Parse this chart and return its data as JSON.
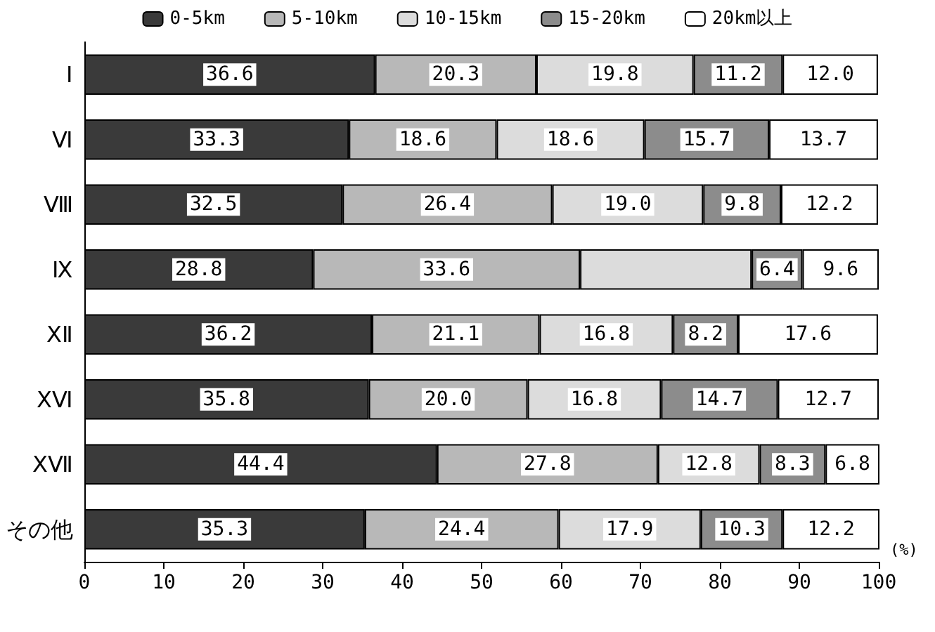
{
  "chart_data": {
    "type": "bar",
    "orientation": "horizontal",
    "stacked": true,
    "xlabel": "(%)",
    "categories": [
      "Ⅰ",
      "Ⅵ",
      "Ⅷ",
      "Ⅸ",
      "ⅩⅡ",
      "ⅩⅥ",
      "ⅩⅦ",
      "その他"
    ],
    "series": [
      {
        "name": "0-5km",
        "color": "#3a3a3a",
        "values": [
          36.6,
          33.3,
          32.5,
          28.8,
          36.2,
          35.8,
          44.4,
          35.3
        ],
        "value_labels": [
          "36.6",
          "33.3",
          "32.5",
          "28.8",
          "36.2",
          "35.8",
          "44.4",
          "35.3"
        ]
      },
      {
        "name": "5-10km",
        "color": "#b8b8b8",
        "values": [
          20.3,
          18.6,
          26.4,
          33.6,
          21.1,
          20.0,
          27.8,
          24.4
        ],
        "value_labels": [
          "20.3",
          "18.6",
          "26.4",
          "33.6",
          "21.1",
          "20.0",
          "27.8",
          "24.4"
        ]
      },
      {
        "name": "10-15km",
        "color": "#dcdcdc",
        "values": [
          19.8,
          18.6,
          19.0,
          21.6,
          16.8,
          16.8,
          12.8,
          17.9
        ],
        "value_labels": [
          "19.8",
          "18.6",
          "19.0",
          null,
          "16.8",
          "16.8",
          "12.8",
          "17.9"
        ]
      },
      {
        "name": "15-20km",
        "color": "#8c8c8c",
        "values": [
          11.2,
          15.7,
          9.8,
          6.4,
          8.2,
          14.7,
          8.3,
          10.3
        ],
        "value_labels": [
          "11.2",
          "15.7",
          "9.8",
          "6.4",
          "8.2",
          "14.7",
          "8.3",
          "10.3"
        ]
      },
      {
        "name": "20km以上",
        "color": "#ffffff",
        "values": [
          12.0,
          13.7,
          12.2,
          9.6,
          17.6,
          12.7,
          6.8,
          12.2
        ],
        "value_labels": [
          "12.0",
          "13.7",
          "12.2",
          "9.6",
          "17.6",
          "12.7",
          "6.8",
          "12.2"
        ]
      }
    ],
    "xlim": [
      0,
      100
    ],
    "xticks": [
      0,
      10,
      20,
      30,
      40,
      50,
      60,
      70,
      80,
      90,
      100
    ],
    "legend": "top",
    "grid": false
  }
}
